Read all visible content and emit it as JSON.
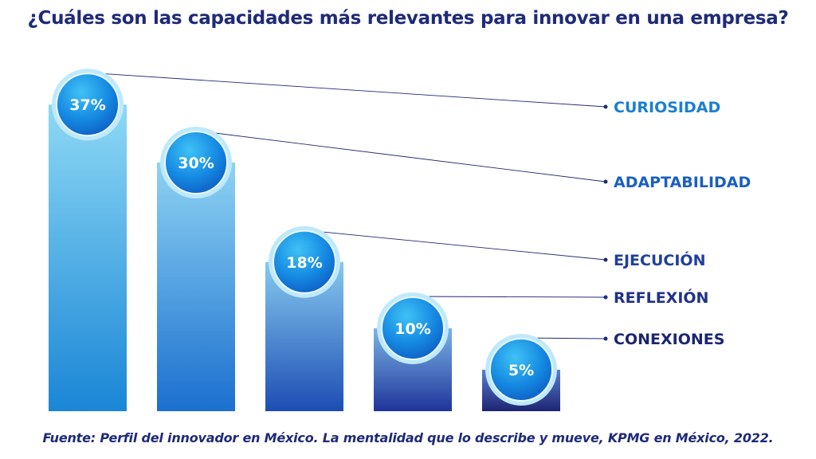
{
  "chart_data": {
    "type": "bar",
    "title": "¿Cuáles son las capacidades más relevantes para innovar en una empresa?",
    "categories": [
      "CURIOSIDAD",
      "ADAPTABILIDAD",
      "EJECUCIÓN",
      "REFLEXIÓN",
      "CONEXIONES"
    ],
    "values": [
      37,
      30,
      18,
      10,
      5
    ],
    "value_labels": [
      "37%",
      "30%",
      "18%",
      "10%",
      "5%"
    ],
    "unit": "%",
    "ylim": [
      0,
      40
    ],
    "grid": false,
    "legend": "none",
    "label_colors": [
      "#1a7fd4",
      "#1a5fc0",
      "#1f3f9e",
      "#21318a",
      "#1c2570"
    ],
    "source": "Fuente: Perfil del innovador en México. La mentalidad que lo describe y mueve, KPMG en México, 2022."
  }
}
